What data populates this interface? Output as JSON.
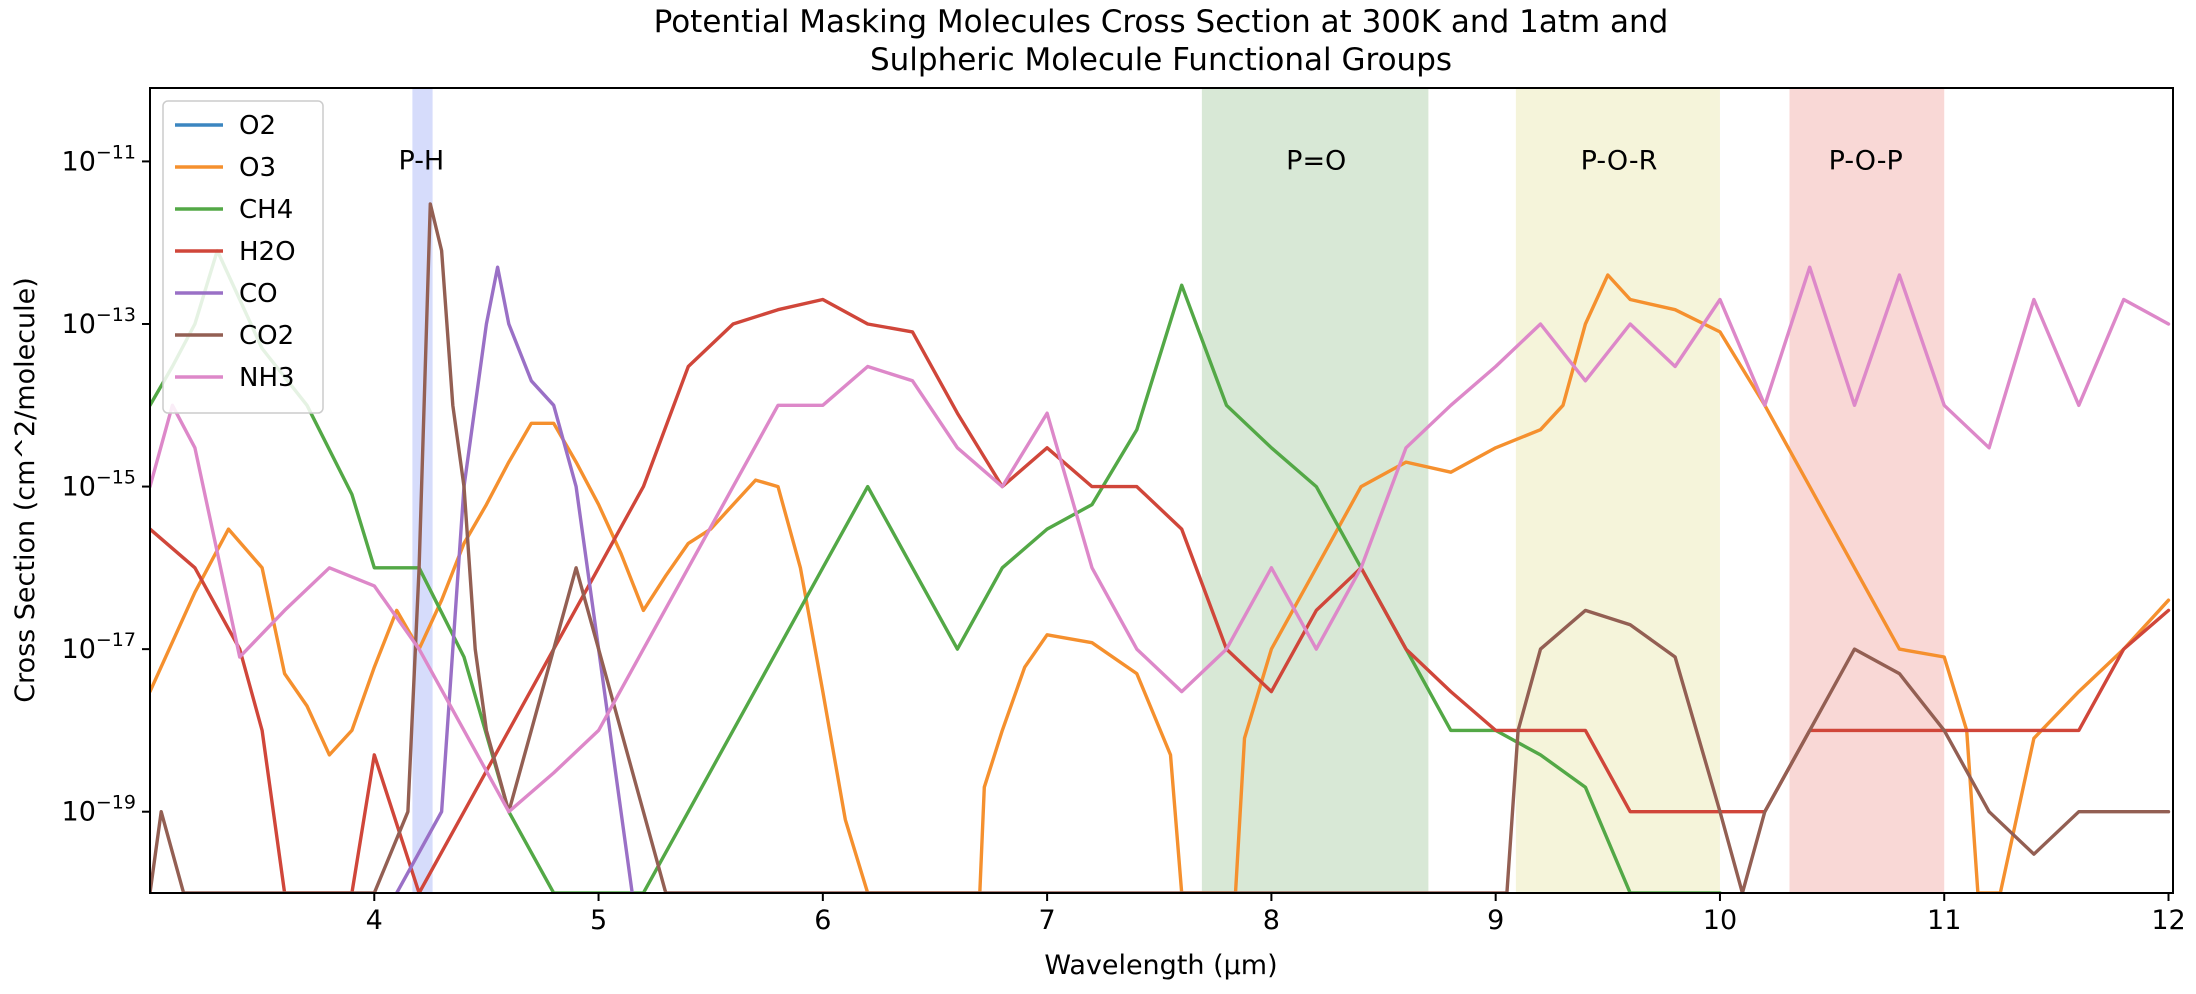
{
  "chart_data": {
    "type": "line",
    "title_lines": [
      "Potential Masking Molecules Cross Section at 300K and 1atm and",
      "Sulpheric Molecule Functional Groups"
    ],
    "xlabel": "Wavelength (μm)",
    "ylabel": "Cross Section (cm^2/molecule)",
    "x_unit": "μm",
    "xlim": [
      3.0,
      12.02
    ],
    "y_scale": "log",
    "ylim": [
      1e-20,
      8e-11
    ],
    "x_ticks": [
      4,
      5,
      6,
      7,
      8,
      9,
      10,
      11,
      12
    ],
    "y_ticks": [
      {
        "value": 1e-11,
        "base": "10",
        "exp": "−11"
      },
      {
        "value": 1e-13,
        "base": "10",
        "exp": "−13"
      },
      {
        "value": 1e-15,
        "base": "10",
        "exp": "−15"
      },
      {
        "value": 1e-17,
        "base": "10",
        "exp": "−17"
      },
      {
        "value": 1e-19,
        "base": "10",
        "exp": "−19"
      }
    ],
    "grid": false,
    "legend_position": "top-left",
    "bands": [
      {
        "label": "P-H",
        "x0": 4.17,
        "x1": 4.26,
        "color": "#d6dcfb",
        "label_x": 4.21
      },
      {
        "label": "P=O",
        "x0": 7.69,
        "x1": 8.7,
        "color": "#d8e8d6",
        "label_x": 8.2
      },
      {
        "label": "P-O-R",
        "x0": 9.09,
        "x1": 10.0,
        "color": "#f5f4da",
        "label_x": 9.55
      },
      {
        "label": "P-O-P",
        "x0": 10.31,
        "x1": 11.0,
        "color": "#f9d8d6",
        "label_x": 10.65
      }
    ],
    "band_label_y": 8e-12,
    "series": [
      {
        "name": "O2",
        "color": "#3b86c0",
        "points": []
      },
      {
        "name": "O3",
        "color": "#f5902e",
        "points": [
          [
            3.0,
            3e-18
          ],
          [
            3.2,
            5e-17
          ],
          [
            3.35,
            3e-16
          ],
          [
            3.5,
            1e-16
          ],
          [
            3.6,
            5e-18
          ],
          [
            3.7,
            2e-18
          ],
          [
            3.8,
            5e-19
          ],
          [
            3.9,
            1e-18
          ],
          [
            4.0,
            6e-18
          ],
          [
            4.1,
            3e-17
          ],
          [
            4.2,
            1e-17
          ],
          [
            4.3,
            4e-17
          ],
          [
            4.4,
            2e-16
          ],
          [
            4.5,
            6e-16
          ],
          [
            4.6,
            2e-15
          ],
          [
            4.7,
            6e-15
          ],
          [
            4.8,
            6e-15
          ],
          [
            4.9,
            2e-15
          ],
          [
            5.0,
            6e-16
          ],
          [
            5.1,
            1.5e-16
          ],
          [
            5.2,
            3e-17
          ],
          [
            5.3,
            8e-17
          ],
          [
            5.4,
            2e-16
          ],
          [
            5.5,
            3e-16
          ],
          [
            5.6,
            6e-16
          ],
          [
            5.7,
            1.2e-15
          ],
          [
            5.8,
            1e-15
          ],
          [
            5.9,
            1e-16
          ],
          [
            6.0,
            3e-18
          ],
          [
            6.1,
            8e-20
          ],
          [
            6.2,
            1e-20
          ],
          [
            6.7,
            1e-20
          ],
          [
            6.72,
            2e-19
          ],
          [
            6.8,
            1e-18
          ],
          [
            6.9,
            6e-18
          ],
          [
            7.0,
            1.5e-17
          ],
          [
            7.2,
            1.2e-17
          ],
          [
            7.4,
            5e-18
          ],
          [
            7.55,
            5e-19
          ],
          [
            7.6,
            1e-20
          ],
          [
            7.84,
            1e-20
          ],
          [
            7.88,
            8e-19
          ],
          [
            8.0,
            1e-17
          ],
          [
            8.2,
            1e-16
          ],
          [
            8.4,
            1e-15
          ],
          [
            8.6,
            2e-15
          ],
          [
            8.8,
            1.5e-15
          ],
          [
            9.0,
            3e-15
          ],
          [
            9.2,
            5e-15
          ],
          [
            9.3,
            1e-14
          ],
          [
            9.4,
            1e-13
          ],
          [
            9.5,
            4e-13
          ],
          [
            9.6,
            2e-13
          ],
          [
            9.8,
            1.5e-13
          ],
          [
            10.0,
            8e-14
          ],
          [
            10.2,
            1e-14
          ],
          [
            10.4,
            1e-15
          ],
          [
            10.6,
            1e-16
          ],
          [
            10.8,
            1e-17
          ],
          [
            11.0,
            8e-18
          ],
          [
            11.1,
            1e-18
          ],
          [
            11.15,
            1e-20
          ],
          [
            11.25,
            1e-20
          ],
          [
            11.4,
            8e-19
          ],
          [
            11.6,
            3e-18
          ],
          [
            11.8,
            1e-17
          ],
          [
            12.0,
            4e-17
          ]
        ]
      },
      {
        "name": "CH4",
        "color": "#53a846",
        "points": [
          [
            3.0,
            1e-14
          ],
          [
            3.1,
            3e-14
          ],
          [
            3.2,
            1e-13
          ],
          [
            3.3,
            8e-13
          ],
          [
            3.4,
            2e-13
          ],
          [
            3.5,
            5e-14
          ],
          [
            3.7,
            1e-14
          ],
          [
            3.9,
            8e-16
          ],
          [
            4.0,
            1e-16
          ],
          [
            4.2,
            1e-16
          ],
          [
            4.4,
            8e-18
          ],
          [
            4.6,
            1e-19
          ],
          [
            4.8,
            1e-20
          ],
          [
            5.2,
            1e-20
          ],
          [
            5.4,
            1e-19
          ],
          [
            5.6,
            1e-18
          ],
          [
            5.8,
            1e-17
          ],
          [
            6.0,
            1e-16
          ],
          [
            6.2,
            1e-15
          ],
          [
            6.4,
            1e-16
          ],
          [
            6.6,
            1e-17
          ],
          [
            6.8,
            1e-16
          ],
          [
            7.0,
            3e-16
          ],
          [
            7.2,
            6e-16
          ],
          [
            7.4,
            5e-15
          ],
          [
            7.6,
            3e-13
          ],
          [
            7.8,
            1e-14
          ],
          [
            8.0,
            3e-15
          ],
          [
            8.2,
            1e-15
          ],
          [
            8.4,
            1e-16
          ],
          [
            8.6,
            1e-17
          ],
          [
            8.8,
            1e-18
          ],
          [
            9.0,
            1e-18
          ],
          [
            9.2,
            5e-19
          ],
          [
            9.4,
            2e-19
          ],
          [
            9.6,
            1e-20
          ],
          [
            10.0,
            1e-20
          ]
        ]
      },
      {
        "name": "H2O",
        "color": "#d0463a",
        "points": [
          [
            3.0,
            3e-16
          ],
          [
            3.2,
            1e-16
          ],
          [
            3.4,
            1e-17
          ],
          [
            3.5,
            1e-18
          ],
          [
            3.6,
            1e-20
          ],
          [
            3.9,
            1e-20
          ],
          [
            4.0,
            5e-19
          ],
          [
            4.2,
            1e-20
          ],
          [
            4.4,
            1e-19
          ],
          [
            4.6,
            1e-18
          ],
          [
            4.8,
            1e-17
          ],
          [
            5.0,
            1e-16
          ],
          [
            5.2,
            1e-15
          ],
          [
            5.4,
            3e-14
          ],
          [
            5.6,
            1e-13
          ],
          [
            5.8,
            1.5e-13
          ],
          [
            6.0,
            2e-13
          ],
          [
            6.2,
            1e-13
          ],
          [
            6.4,
            8e-14
          ],
          [
            6.6,
            8e-15
          ],
          [
            6.8,
            1e-15
          ],
          [
            7.0,
            3e-15
          ],
          [
            7.2,
            1e-15
          ],
          [
            7.4,
            1e-15
          ],
          [
            7.6,
            3e-16
          ],
          [
            7.8,
            1e-17
          ],
          [
            8.0,
            3e-18
          ],
          [
            8.2,
            3e-17
          ],
          [
            8.4,
            1e-16
          ],
          [
            8.6,
            1e-17
          ],
          [
            8.8,
            3e-18
          ],
          [
            9.0,
            1e-18
          ],
          [
            9.2,
            1e-18
          ],
          [
            9.4,
            1e-18
          ],
          [
            9.6,
            1e-19
          ],
          [
            9.8,
            1e-19
          ],
          [
            10.0,
            1e-19
          ],
          [
            10.2,
            1e-19
          ],
          [
            10.4,
            1e-18
          ],
          [
            10.6,
            1e-18
          ],
          [
            10.8,
            1e-18
          ],
          [
            11.0,
            1e-18
          ],
          [
            11.2,
            1e-18
          ],
          [
            11.4,
            1e-18
          ],
          [
            11.6,
            1e-18
          ],
          [
            11.8,
            1e-17
          ],
          [
            12.0,
            3e-17
          ]
        ]
      },
      {
        "name": "CO",
        "color": "#9a70c6",
        "points": [
          [
            4.1,
            1e-20
          ],
          [
            4.3,
            1e-19
          ],
          [
            4.4,
            1e-15
          ],
          [
            4.5,
            1e-13
          ],
          [
            4.55,
            5e-13
          ],
          [
            4.6,
            1e-13
          ],
          [
            4.7,
            2e-14
          ],
          [
            4.8,
            1e-14
          ],
          [
            4.9,
            1e-15
          ],
          [
            5.0,
            1e-17
          ],
          [
            5.1,
            1e-19
          ],
          [
            5.15,
            1e-20
          ]
        ]
      },
      {
        "name": "CO2",
        "color": "#935f53",
        "points": [
          [
            3.0,
            1e-20
          ],
          [
            3.05,
            1e-19
          ],
          [
            3.15,
            1e-20
          ],
          [
            4.0,
            1e-20
          ],
          [
            4.15,
            1e-19
          ],
          [
            4.2,
            1e-16
          ],
          [
            4.25,
            3e-12
          ],
          [
            4.3,
            8e-13
          ],
          [
            4.35,
            1e-14
          ],
          [
            4.4,
            1e-15
          ],
          [
            4.45,
            1e-17
          ],
          [
            4.5,
            1e-18
          ],
          [
            4.6,
            1e-19
          ],
          [
            4.7,
            1e-18
          ],
          [
            4.8,
            1e-17
          ],
          [
            4.9,
            1e-16
          ],
          [
            5.0,
            1e-17
          ],
          [
            5.1,
            1e-18
          ],
          [
            5.2,
            1e-19
          ],
          [
            5.3,
            1e-20
          ],
          [
            5.5,
            1e-20
          ],
          [
            9.05,
            1e-20
          ],
          [
            9.1,
            1e-18
          ],
          [
            9.2,
            1e-17
          ],
          [
            9.4,
            3e-17
          ],
          [
            9.6,
            2e-17
          ],
          [
            9.8,
            8e-18
          ],
          [
            10.0,
            1e-19
          ],
          [
            10.1,
            1e-20
          ],
          [
            10.2,
            1e-19
          ],
          [
            10.4,
            1e-18
          ],
          [
            10.6,
            1e-17
          ],
          [
            10.8,
            5e-18
          ],
          [
            11.0,
            1e-18
          ],
          [
            11.2,
            1e-19
          ],
          [
            11.4,
            3e-20
          ],
          [
            11.6,
            1e-19
          ],
          [
            11.8,
            1e-19
          ],
          [
            12.0,
            1e-19
          ]
        ]
      },
      {
        "name": "NH3",
        "color": "#dd88c9",
        "points": [
          [
            3.0,
            1e-15
          ],
          [
            3.1,
            1e-14
          ],
          [
            3.2,
            3e-15
          ],
          [
            3.4,
            8e-18
          ],
          [
            3.6,
            3e-17
          ],
          [
            3.8,
            1e-16
          ],
          [
            4.0,
            6e-17
          ],
          [
            4.2,
            1e-17
          ],
          [
            4.4,
            1e-18
          ],
          [
            4.6,
            1e-19
          ],
          [
            4.8,
            3e-19
          ],
          [
            5.0,
            1e-18
          ],
          [
            5.2,
            1e-17
          ],
          [
            5.4,
            1e-16
          ],
          [
            5.6,
            1e-15
          ],
          [
            5.8,
            1e-14
          ],
          [
            6.0,
            1e-14
          ],
          [
            6.2,
            3e-14
          ],
          [
            6.4,
            2e-14
          ],
          [
            6.6,
            3e-15
          ],
          [
            6.8,
            1e-15
          ],
          [
            7.0,
            8e-15
          ],
          [
            7.2,
            1e-16
          ],
          [
            7.4,
            1e-17
          ],
          [
            7.6,
            3e-18
          ],
          [
            7.8,
            1e-17
          ],
          [
            8.0,
            1e-16
          ],
          [
            8.2,
            1e-17
          ],
          [
            8.4,
            1e-16
          ],
          [
            8.6,
            3e-15
          ],
          [
            8.8,
            1e-14
          ],
          [
            9.0,
            3e-14
          ],
          [
            9.2,
            1e-13
          ],
          [
            9.4,
            2e-14
          ],
          [
            9.6,
            1e-13
          ],
          [
            9.8,
            3e-14
          ],
          [
            10.0,
            2e-13
          ],
          [
            10.2,
            1e-14
          ],
          [
            10.4,
            5e-13
          ],
          [
            10.6,
            1e-14
          ],
          [
            10.8,
            4e-13
          ],
          [
            11.0,
            1e-14
          ],
          [
            11.2,
            3e-15
          ],
          [
            11.4,
            2e-13
          ],
          [
            11.6,
            1e-14
          ],
          [
            11.8,
            2e-13
          ],
          [
            12.0,
            1e-13
          ]
        ]
      }
    ]
  }
}
